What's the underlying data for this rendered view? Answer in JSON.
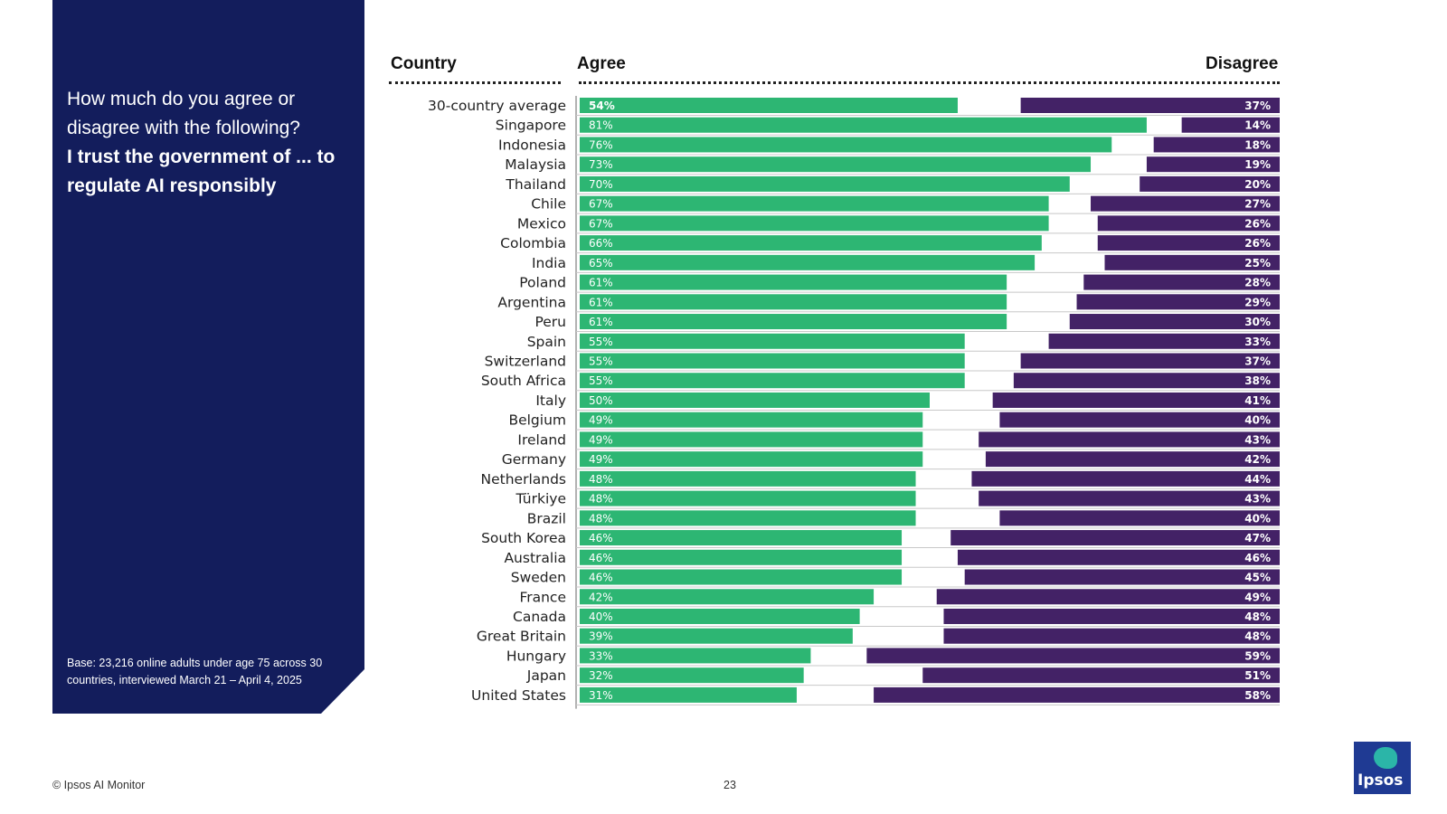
{
  "panel": {
    "question_line1": "How much do you agree or disagree with the following?",
    "question_line2": "I trust the government of ... to regulate AI responsibly",
    "base_note": "Base: 23,216 online adults under age 75 across 30 countries, interviewed March 21 – April 4, 2025"
  },
  "headers": {
    "country": "Country",
    "agree": "Agree",
    "disagree": "Disagree"
  },
  "footer": {
    "copyright": "© Ipsos AI Monitor",
    "page_number": "23",
    "logo_text": "Ipsos"
  },
  "colors": {
    "panel_bg": "#131d5c",
    "agree": "#2db673",
    "disagree": "#432266"
  },
  "chart_data": {
    "type": "bar",
    "orientation": "horizontal",
    "stacked": "diverging",
    "categories": [
      "30-country average",
      "Singapore",
      "Indonesia",
      "Malaysia",
      "Thailand",
      "Chile",
      "Mexico",
      "Colombia",
      "India",
      "Poland",
      "Argentina",
      "Peru",
      "Spain",
      "Switzerland",
      "South Africa",
      "Italy",
      "Belgium",
      "Ireland",
      "Germany",
      "Netherlands",
      "Türkiye",
      "Brazil",
      "South Korea",
      "Australia",
      "Sweden",
      "France",
      "Canada",
      "Great Britain",
      "Hungary",
      "Japan",
      "United States"
    ],
    "series": [
      {
        "name": "Agree",
        "values": [
          54,
          81,
          76,
          73,
          70,
          67,
          67,
          66,
          65,
          61,
          61,
          61,
          55,
          55,
          55,
          50,
          49,
          49,
          49,
          48,
          48,
          48,
          46,
          46,
          46,
          42,
          40,
          39,
          33,
          32,
          31
        ]
      },
      {
        "name": "Disagree",
        "values": [
          37,
          14,
          18,
          19,
          20,
          27,
          26,
          26,
          25,
          28,
          29,
          30,
          33,
          37,
          38,
          41,
          40,
          43,
          42,
          44,
          43,
          40,
          47,
          46,
          45,
          49,
          48,
          48,
          59,
          51,
          58
        ]
      }
    ],
    "value_suffix": "%"
  }
}
